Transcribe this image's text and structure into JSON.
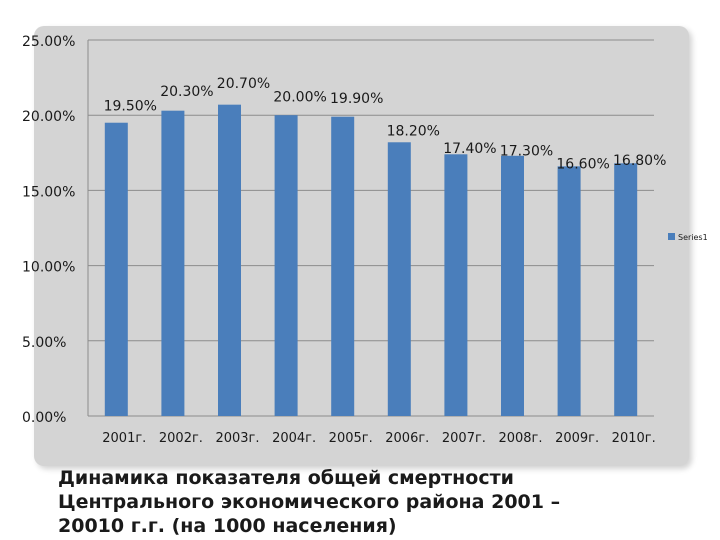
{
  "chart_data": {
    "type": "bar",
    "categories": [
      "2001г.",
      "2002г.",
      "2003г.",
      "2004г.",
      "2005г.",
      "2006г.",
      "2007г.",
      "2008г.",
      "2009г.",
      "2010г."
    ],
    "series": [
      {
        "name": "Series1",
        "values": [
          19.5,
          20.3,
          20.7,
          20.0,
          19.9,
          18.2,
          17.4,
          17.3,
          16.6,
          16.8
        ],
        "data_labels": [
          "19.50%",
          "20.30%",
          "20.70%",
          "20.00%",
          "19.90%",
          "18.20%",
          "17.40%",
          "17.30%",
          "16.60%",
          "16.80%"
        ]
      }
    ],
    "y_ticks": [
      0,
      5,
      10,
      15,
      20,
      25
    ],
    "y_tick_labels": [
      "0.00%",
      "5.00%",
      "10.00%",
      "15.00%",
      "20.00%",
      "25.00%"
    ],
    "ylim": [
      0,
      25
    ],
    "grid": true,
    "legend_position": "right",
    "title": "",
    "xlabel": "",
    "ylabel": "",
    "colors": {
      "bar": "#4a7ebb",
      "plot_background": "#d4d4d4",
      "gridline": "#8c8c8c",
      "text": "#1a1a1a"
    }
  },
  "caption": "Динамика показателя общей  смертности\nЦентрального экономического района  2001 –\n20010 г.г. (на 1000 населения)"
}
